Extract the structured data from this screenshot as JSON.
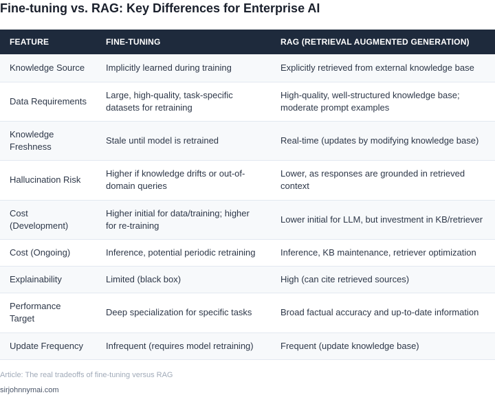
{
  "title": "Fine-tuning vs. RAG: Key Differences for Enterprise AI",
  "table": {
    "headers": [
      "FEATURE",
      "FINE-TUNING",
      "RAG (RETRIEVAL AUGMENTED GENERATION)"
    ],
    "rows": [
      [
        "Knowledge Source",
        "Implicitly learned during training",
        "Explicitly retrieved from external knowledge base"
      ],
      [
        "Data Requirements",
        "Large, high-quality, task-specific datasets for retraining",
        "High-quality, well-structured knowledge base; moderate prompt examples"
      ],
      [
        "Knowledge Freshness",
        "Stale until model is retrained",
        "Real-time (updates by modifying knowledge base)"
      ],
      [
        "Hallucination Risk",
        "Higher if knowledge drifts or out-of-domain queries",
        "Lower, as responses are grounded in retrieved context"
      ],
      [
        "Cost (Development)",
        "Higher initial for data/training; higher for re-training",
        "Lower initial for LLM, but investment in KB/retriever"
      ],
      [
        "Cost (Ongoing)",
        "Inference, potential periodic retraining",
        "Inference, KB maintenance, retriever optimization"
      ],
      [
        "Explainability",
        "Limited (black box)",
        "High (can cite retrieved sources)"
      ],
      [
        "Performance Target",
        "Deep specialization for specific tasks",
        "Broad factual accuracy and up-to-date information"
      ],
      [
        "Update Frequency",
        "Infrequent (requires model retraining)",
        "Frequent (update knowledge base)"
      ]
    ]
  },
  "caption": "Article: The real tradeoffs of fine-tuning versus RAG",
  "site": "sirjohnnymai.com",
  "colors": {
    "header_bg": "#1e2a3c",
    "header_text": "#ffffff",
    "row_alt_bg": "#f7f9fb",
    "border": "#e2e8f0"
  }
}
